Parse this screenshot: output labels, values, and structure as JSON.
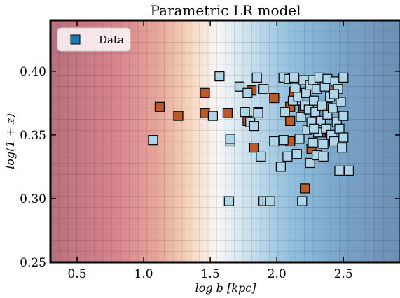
{
  "chart_data": {
    "type": "scatter",
    "title": "Parametric LR model",
    "xlabel": "log b [kpc]",
    "ylabel": "log(1 + z)",
    "xlim": [
      0.3,
      2.93
    ],
    "ylim": [
      0.25,
      0.44
    ],
    "xticks": [
      0.5,
      1.0,
      1.5,
      2.0,
      2.5
    ],
    "xtick_labels": [
      "0.5",
      "1.0",
      "1.5",
      "2.0",
      "2.5"
    ],
    "yticks": [
      0.25,
      0.3,
      0.35,
      0.4
    ],
    "ytick_labels": [
      "0.25",
      "0.30",
      "0.35",
      "0.40"
    ],
    "legend": {
      "label": "Data",
      "position": "top-left",
      "marker_color": "#1f77b4"
    },
    "background": {
      "description": "diverging colormap across x, red at low b, white near 1.55, blue at high b",
      "stops": [
        {
          "x": 0.3,
          "color": "#b6707e"
        },
        {
          "x": 0.8,
          "color": "#d9848e"
        },
        {
          "x": 1.1,
          "color": "#e6a59a"
        },
        {
          "x": 1.35,
          "color": "#f7d5bf"
        },
        {
          "x": 1.55,
          "color": "#f7f7f7"
        },
        {
          "x": 1.8,
          "color": "#c9dfec"
        },
        {
          "x": 2.1,
          "color": "#92c0de"
        },
        {
          "x": 2.5,
          "color": "#7aa3c8"
        },
        {
          "x": 2.93,
          "color": "#6c8fb1"
        }
      ]
    },
    "marker_colors": {
      "blue": "#aed6e8",
      "orange": "#bb5a25"
    },
    "series": [
      {
        "color_key": "orange",
        "points": [
          [
            1.12,
            0.372
          ],
          [
            1.26,
            0.365
          ],
          [
            1.46,
            0.383
          ],
          [
            1.46,
            0.367
          ],
          [
            1.63,
            0.367
          ],
          [
            1.78,
            0.361
          ],
          [
            1.81,
            0.385
          ],
          [
            1.83,
            0.34
          ],
          [
            1.86,
            0.368
          ],
          [
            1.98,
            0.379
          ],
          [
            2.1,
            0.372
          ],
          [
            2.1,
            0.345
          ],
          [
            2.1,
            0.361
          ],
          [
            2.13,
            0.384
          ],
          [
            2.2,
            0.37
          ],
          [
            2.21,
            0.308
          ],
          [
            2.26,
            0.339
          ],
          [
            2.33,
            0.352
          ],
          [
            2.38,
            0.372
          ],
          [
            2.42,
            0.384
          ]
        ]
      },
      {
        "color_key": "blue",
        "points": [
          [
            1.07,
            0.346
          ],
          [
            1.52,
            0.365
          ],
          [
            1.57,
            0.396
          ],
          [
            1.64,
            0.298
          ],
          [
            1.65,
            0.345
          ],
          [
            1.65,
            0.347
          ],
          [
            1.72,
            0.388
          ],
          [
            1.76,
            0.368
          ],
          [
            1.78,
            0.383
          ],
          [
            1.8,
            0.36
          ],
          [
            1.83,
            0.357
          ],
          [
            1.85,
            0.395
          ],
          [
            1.86,
            0.367
          ],
          [
            1.88,
            0.333
          ],
          [
            1.9,
            0.386
          ],
          [
            1.9,
            0.298
          ],
          [
            1.93,
            0.298
          ],
          [
            1.95,
            0.298
          ],
          [
            1.98,
            0.345
          ],
          [
            2.03,
            0.325
          ],
          [
            2.05,
            0.346
          ],
          [
            2.05,
            0.395
          ],
          [
            2.06,
            0.368
          ],
          [
            2.08,
            0.333
          ],
          [
            2.09,
            0.394
          ],
          [
            2.12,
            0.377
          ],
          [
            2.13,
            0.395
          ],
          [
            2.14,
            0.387
          ],
          [
            2.15,
            0.335
          ],
          [
            2.16,
            0.38
          ],
          [
            2.17,
            0.347
          ],
          [
            2.18,
            0.364
          ],
          [
            2.19,
            0.298
          ],
          [
            2.2,
            0.393
          ],
          [
            2.21,
            0.373
          ],
          [
            2.22,
            0.383
          ],
          [
            2.23,
            0.354
          ],
          [
            2.24,
            0.37
          ],
          [
            2.25,
            0.328
          ],
          [
            2.25,
            0.389
          ],
          [
            2.26,
            0.36
          ],
          [
            2.27,
            0.393
          ],
          [
            2.27,
            0.344
          ],
          [
            2.28,
            0.377
          ],
          [
            2.29,
            0.368
          ],
          [
            2.3,
            0.386
          ],
          [
            2.3,
            0.334
          ],
          [
            2.31,
            0.352
          ],
          [
            2.32,
            0.395
          ],
          [
            2.33,
            0.361
          ],
          [
            2.34,
            0.373
          ],
          [
            2.35,
            0.343
          ],
          [
            2.36,
            0.388
          ],
          [
            2.37,
            0.355
          ],
          [
            2.38,
            0.394
          ],
          [
            2.38,
            0.366
          ],
          [
            2.4,
            0.38
          ],
          [
            2.41,
            0.35
          ],
          [
            2.42,
            0.371
          ],
          [
            2.43,
            0.345
          ],
          [
            2.44,
            0.392
          ],
          [
            2.45,
            0.36
          ],
          [
            2.46,
            0.386
          ],
          [
            2.47,
            0.355
          ],
          [
            2.47,
            0.322
          ],
          [
            2.48,
            0.376
          ],
          [
            2.49,
            0.34
          ],
          [
            2.5,
            0.348
          ],
          [
            2.5,
            0.395
          ],
          [
            2.5,
            0.365
          ],
          [
            2.54,
            0.322
          ],
          [
            2.35,
            0.333
          ],
          [
            2.28,
            0.355
          ],
          [
            2.43,
            0.382
          ]
        ]
      }
    ]
  }
}
